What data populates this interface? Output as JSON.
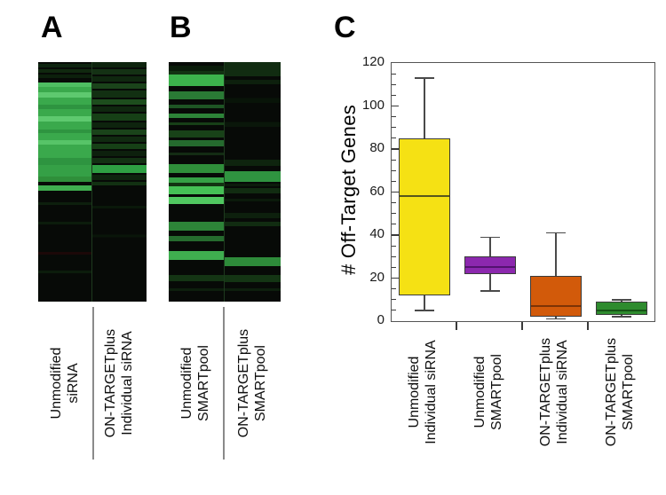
{
  "panels": {
    "a": {
      "letter": "A",
      "col1_label": "Unmodified\nsiRNA",
      "col2_label": "ON-TARGETplus\nIndividual siRNA"
    },
    "b": {
      "letter": "B",
      "col1_label": "Unmodified\nSMARTpool",
      "col2_label": "ON-TARGETplus\nSMARTpool"
    },
    "c": {
      "letter": "C"
    }
  },
  "heatmaps": {
    "black": "#070a07",
    "a_left": [
      [
        0.007,
        0.022,
        "#0e2410"
      ],
      [
        0.03,
        0.044,
        "#10280f"
      ],
      [
        0.052,
        0.067,
        "#0c200c"
      ],
      [
        0.085,
        0.104,
        "#4fbd62"
      ],
      [
        0.104,
        0.126,
        "#3aa94c"
      ],
      [
        0.126,
        0.148,
        "#5ec96f"
      ],
      [
        0.148,
        0.178,
        "#3aa94c"
      ],
      [
        0.178,
        0.196,
        "#2e9440"
      ],
      [
        0.196,
        0.226,
        "#3aa94c"
      ],
      [
        0.226,
        0.248,
        "#5ec96f"
      ],
      [
        0.248,
        0.281,
        "#3aa94c"
      ],
      [
        0.281,
        0.296,
        "#2e9440"
      ],
      [
        0.296,
        0.326,
        "#3aa94c"
      ],
      [
        0.326,
        0.344,
        "#57c468"
      ],
      [
        0.344,
        0.4,
        "#3aa94c"
      ],
      [
        0.4,
        0.43,
        "#2e9440"
      ],
      [
        0.43,
        0.478,
        "#35a046"
      ],
      [
        0.478,
        0.5,
        "#2f8f3a"
      ],
      [
        0.515,
        0.537,
        "#3fae4f"
      ],
      [
        0.585,
        0.596,
        "#0d1f0d"
      ],
      [
        0.667,
        0.678,
        "#0c1c0c"
      ],
      [
        0.793,
        0.804,
        "#1c0808"
      ],
      [
        0.87,
        0.881,
        "#0c1c0c"
      ]
    ],
    "a_right": [
      [
        0.0,
        0.022,
        "#0e240e"
      ],
      [
        0.03,
        0.052,
        "#143114"
      ],
      [
        0.059,
        0.081,
        "#0f270f"
      ],
      [
        0.089,
        0.111,
        "#1a431a"
      ],
      [
        0.119,
        0.148,
        "#123012"
      ],
      [
        0.156,
        0.178,
        "#1d4d1d"
      ],
      [
        0.185,
        0.207,
        "#0f270f"
      ],
      [
        0.215,
        0.244,
        "#164016"
      ],
      [
        0.252,
        0.274,
        "#0e240e"
      ],
      [
        0.281,
        0.304,
        "#1a431a"
      ],
      [
        0.311,
        0.333,
        "#102a10"
      ],
      [
        0.341,
        0.363,
        "#164016"
      ],
      [
        0.37,
        0.393,
        "#0d200d"
      ],
      [
        0.4,
        0.422,
        "#133113"
      ],
      [
        0.43,
        0.463,
        "#2ea043"
      ],
      [
        0.47,
        0.493,
        "#0e240e"
      ],
      [
        0.5,
        0.515,
        "#123112"
      ],
      [
        0.6,
        0.611,
        "#0a180a"
      ],
      [
        0.72,
        0.731,
        "#091509"
      ]
    ],
    "b_left": [
      [
        0.015,
        0.037,
        "#0a1c0a"
      ],
      [
        0.037,
        0.052,
        "#123312"
      ],
      [
        0.052,
        0.1,
        "#3cb34c"
      ],
      [
        0.122,
        0.156,
        "#2a7a35"
      ],
      [
        0.178,
        0.193,
        "#1e5524"
      ],
      [
        0.215,
        0.233,
        "#2d8438"
      ],
      [
        0.252,
        0.263,
        "#173f17"
      ],
      [
        0.285,
        0.315,
        "#184218"
      ],
      [
        0.326,
        0.352,
        "#256b2e"
      ],
      [
        0.378,
        0.389,
        "#132c13"
      ],
      [
        0.426,
        0.463,
        "#2f8f3a"
      ],
      [
        0.481,
        0.504,
        "#35a045"
      ],
      [
        0.504,
        0.519,
        "#123312"
      ],
      [
        0.519,
        0.552,
        "#45c055"
      ],
      [
        0.563,
        0.593,
        "#50c860"
      ],
      [
        0.667,
        0.704,
        "#2d8438"
      ],
      [
        0.726,
        0.748,
        "#256b2e"
      ],
      [
        0.789,
        0.826,
        "#3fae4f"
      ],
      [
        0.889,
        0.915,
        "#143514"
      ],
      [
        0.944,
        0.956,
        "#0d1f0d"
      ]
    ],
    "b_right": [
      [
        0.0,
        0.059,
        "#112c11"
      ],
      [
        0.074,
        0.093,
        "#0d200d"
      ],
      [
        0.15,
        0.17,
        "#081408"
      ],
      [
        0.25,
        0.27,
        "#0a170a"
      ],
      [
        0.407,
        0.433,
        "#0e240e"
      ],
      [
        0.456,
        0.5,
        "#2f9440"
      ],
      [
        0.508,
        0.519,
        "#0c1c0c"
      ],
      [
        0.526,
        0.548,
        "#112c11"
      ],
      [
        0.57,
        0.581,
        "#0b1a0b"
      ],
      [
        0.63,
        0.652,
        "#0d200d"
      ],
      [
        0.667,
        0.685,
        "#112c11"
      ],
      [
        0.815,
        0.852,
        "#2e8b3a"
      ],
      [
        0.889,
        0.919,
        "#143514"
      ],
      [
        0.944,
        0.956,
        "#0d1f0d"
      ]
    ]
  },
  "chart_data": {
    "type": "box",
    "title": "",
    "xlabel": "",
    "ylabel": "# Off-Target Genes",
    "ylim": [
      0,
      120
    ],
    "yticks": [
      0,
      20,
      40,
      60,
      80,
      100,
      120
    ],
    "ytick_labels": [
      "0",
      "20",
      "40",
      "60",
      "80",
      "100",
      "120"
    ],
    "ytick_minor_interval": 5,
    "grid": "off",
    "legend": "none",
    "categories": [
      "Unmodified\nIndividual siRNA",
      "Unmodified\nSMARTpool",
      "ON-TARGETplus\nIndividual siRNA",
      "ON-TARGETplus\nSMARTpool"
    ],
    "series": [
      {
        "name": "Unmodified Individual siRNA",
        "box_color": "#f5e114",
        "median_color": "#56561c",
        "whisker_low": 5,
        "q1": 12,
        "median": 58,
        "q3": 85,
        "whisker_high": 113
      },
      {
        "name": "Unmodified SMARTpool",
        "box_color": "#8c28ae",
        "median_color": "#531270",
        "whisker_low": 14,
        "q1": 22,
        "median": 25,
        "q3": 30,
        "whisker_high": 39
      },
      {
        "name": "ON-TARGETplus Individual siRNA",
        "box_color": "#d25a0a",
        "median_color": "#7d3305",
        "whisker_low": 1,
        "q1": 2,
        "median": 7,
        "q3": 21,
        "whisker_high": 41
      },
      {
        "name": "ON-TARGETplus SMARTpool",
        "box_color": "#2e8b2e",
        "median_color": "#155315",
        "whisker_low": 2,
        "q1": 3,
        "median": 5,
        "q3": 9,
        "whisker_high": 10
      }
    ]
  }
}
